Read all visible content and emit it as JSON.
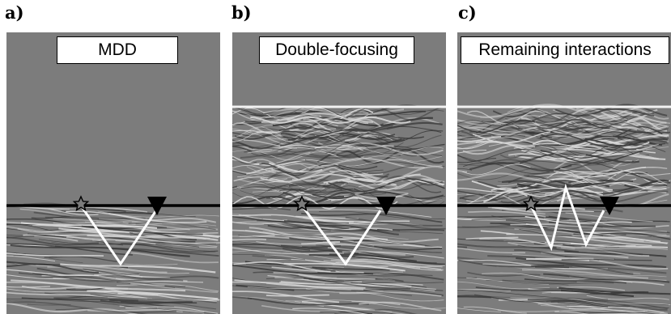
{
  "panels": [
    {
      "id": "a",
      "letter": "a)",
      "title": "MDD",
      "has_overburden": false,
      "path": "single"
    },
    {
      "id": "b",
      "letter": "b)",
      "title": "Double-focusing",
      "has_overburden": true,
      "path": "single"
    },
    {
      "id": "c",
      "letter": "c)",
      "title": "Remaining interactions",
      "has_overburden": true,
      "path": "multiple"
    }
  ],
  "colors": {
    "background_gray": "#7c7c7c",
    "ray": "#ffffff",
    "datum": "#000000"
  },
  "icons": {
    "source": "star-icon",
    "receiver": "triangle-down-icon"
  }
}
